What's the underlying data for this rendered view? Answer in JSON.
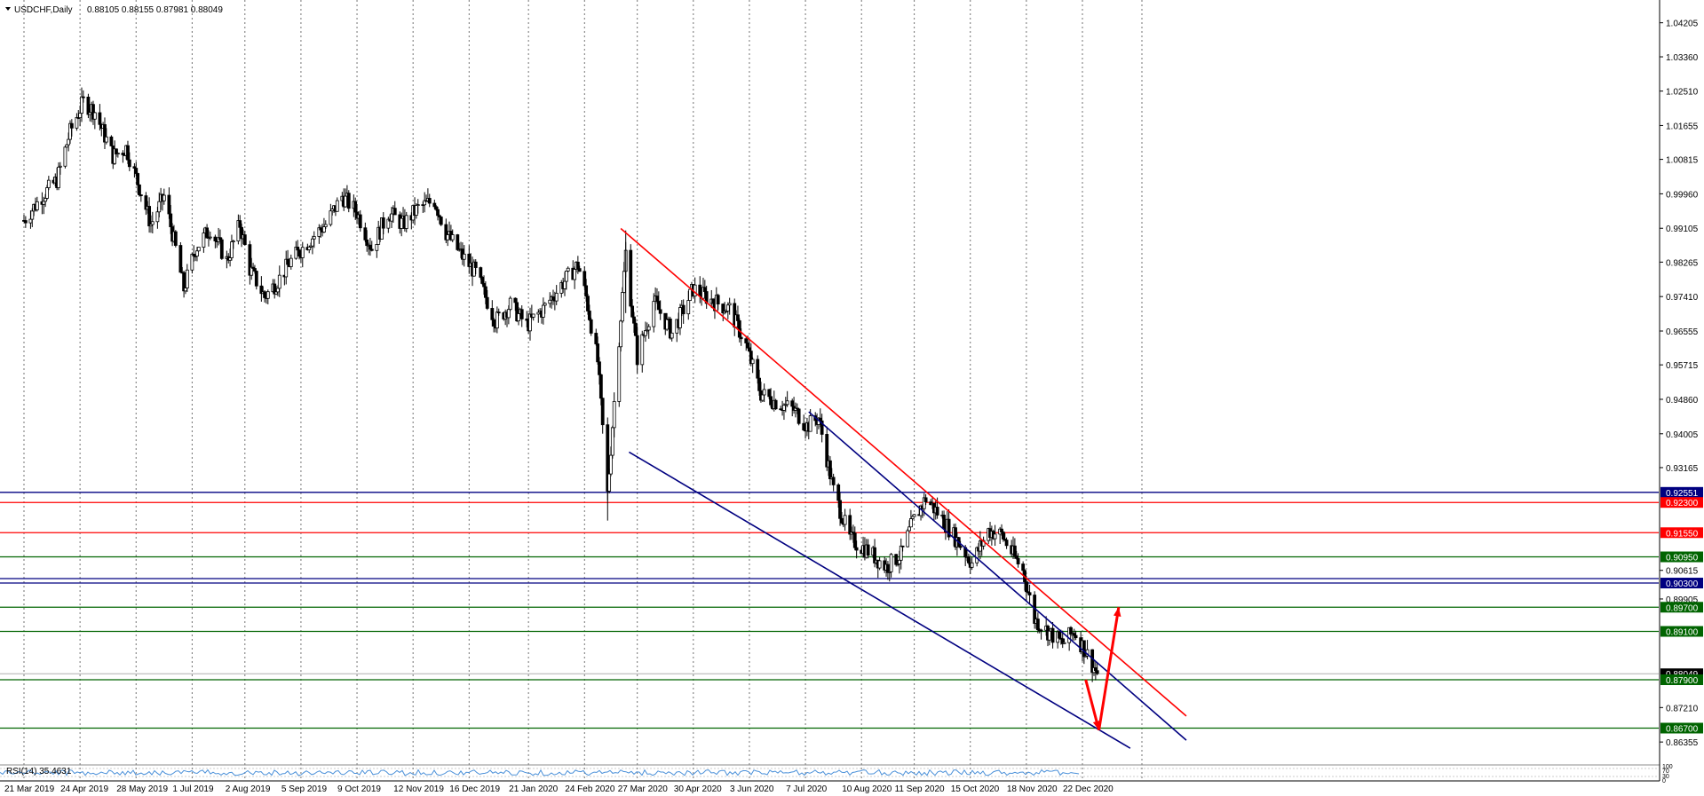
{
  "chart_data": {
    "type": "candlestick",
    "symbol_label": "USDCHF,Daily",
    "ohlc_text": "0.88105 0.88155 0.87981 0.88049",
    "ylim": [
      0.8605,
      1.0455
    ],
    "y_ticks": [
      "1.04205",
      "1.03360",
      "1.02510",
      "1.01655",
      "1.00815",
      "0.99960",
      "0.99105",
      "0.98265",
      "0.97410",
      "0.96555",
      "0.95715",
      "0.94860",
      "0.94005",
      "0.93165",
      "0.90615",
      "0.89905",
      "0.87210",
      "0.86355"
    ],
    "x_ticks": [
      {
        "label": "21 Mar 2019",
        "x": "2019-03-21"
      },
      {
        "label": "24 Apr 2019",
        "x": "2019-04-24"
      },
      {
        "label": "28 May 2019",
        "x": "2019-05-28"
      },
      {
        "label": "1 Jul 2019",
        "x": "2019-07-01"
      },
      {
        "label": "2 Aug 2019",
        "x": "2019-08-02"
      },
      {
        "label": "5 Sep 2019",
        "x": "2019-09-05"
      },
      {
        "label": "9 Oct 2019",
        "x": "2019-10-09"
      },
      {
        "label": "12 Nov 2019",
        "x": "2019-11-12"
      },
      {
        "label": "16 Dec 2019",
        "x": "2019-12-16"
      },
      {
        "label": "21 Jan 2020",
        "x": "2020-01-21"
      },
      {
        "label": "24 Feb 2020",
        "x": "2020-02-24"
      },
      {
        "label": "27 Mar 2020",
        "x": "2020-03-27"
      },
      {
        "label": "30 Apr 2020",
        "x": "2020-04-30"
      },
      {
        "label": "3 Jun 2020",
        "x": "2020-06-03"
      },
      {
        "label": "7 Jul 2020",
        "x": "2020-07-07"
      },
      {
        "label": "10 Aug 2020",
        "x": "2020-08-10"
      },
      {
        "label": "11 Sep 2020",
        "x": "2020-09-11"
      },
      {
        "label": "15 Oct 2020",
        "x": "2020-10-15"
      },
      {
        "label": "18 Nov 2020",
        "x": "2020-11-18"
      },
      {
        "label": "22 Dec 2020",
        "x": "2020-12-22"
      }
    ],
    "price_path": [
      {
        "x": "2019-03-21",
        "y": 0.993
      },
      {
        "x": "2019-04-01",
        "y": 0.999
      },
      {
        "x": "2019-04-10",
        "y": 1.003
      },
      {
        "x": "2019-04-18",
        "y": 1.015
      },
      {
        "x": "2019-04-26",
        "y": 1.0225
      },
      {
        "x": "2019-05-03",
        "y": 1.02
      },
      {
        "x": "2019-05-14",
        "y": 1.009
      },
      {
        "x": "2019-05-22",
        "y": 1.011
      },
      {
        "x": "2019-05-31",
        "y": 1.0
      },
      {
        "x": "2019-06-06",
        "y": 0.992
      },
      {
        "x": "2019-06-14",
        "y": 0.999
      },
      {
        "x": "2019-06-20",
        "y": 0.988
      },
      {
        "x": "2019-06-26",
        "y": 0.976
      },
      {
        "x": "2019-07-03",
        "y": 0.986
      },
      {
        "x": "2019-07-12",
        "y": 0.991
      },
      {
        "x": "2019-07-22",
        "y": 0.983
      },
      {
        "x": "2019-07-30",
        "y": 0.992
      },
      {
        "x": "2019-08-05",
        "y": 0.981
      },
      {
        "x": "2019-08-14",
        "y": 0.974
      },
      {
        "x": "2019-08-22",
        "y": 0.978
      },
      {
        "x": "2019-08-30",
        "y": 0.983
      },
      {
        "x": "2019-09-10",
        "y": 0.988
      },
      {
        "x": "2019-09-20",
        "y": 0.992
      },
      {
        "x": "2019-09-30",
        "y": 0.999
      },
      {
        "x": "2019-10-09",
        "y": 0.995
      },
      {
        "x": "2019-10-18",
        "y": 0.986
      },
      {
        "x": "2019-10-28",
        "y": 0.995
      },
      {
        "x": "2019-11-06",
        "y": 0.992
      },
      {
        "x": "2019-11-15",
        "y": 0.996
      },
      {
        "x": "2019-11-25",
        "y": 0.998
      },
      {
        "x": "2019-12-02",
        "y": 0.99
      },
      {
        "x": "2019-12-12",
        "y": 0.984
      },
      {
        "x": "2019-12-20",
        "y": 0.98
      },
      {
        "x": "2020-01-01",
        "y": 0.968
      },
      {
        "x": "2020-01-10",
        "y": 0.972
      },
      {
        "x": "2020-01-20",
        "y": 0.967
      },
      {
        "x": "2020-01-30",
        "y": 0.971
      },
      {
        "x": "2020-02-10",
        "y": 0.977
      },
      {
        "x": "2020-02-20",
        "y": 0.982
      },
      {
        "x": "2020-02-25",
        "y": 0.974
      },
      {
        "x": "2020-03-03",
        "y": 0.958
      },
      {
        "x": "2020-03-09",
        "y": 0.925
      },
      {
        "x": "2020-03-13",
        "y": 0.948
      },
      {
        "x": "2020-03-20",
        "y": 0.985
      },
      {
        "x": "2020-03-27",
        "y": 0.959
      },
      {
        "x": "2020-04-06",
        "y": 0.973
      },
      {
        "x": "2020-04-17",
        "y": 0.965
      },
      {
        "x": "2020-04-30",
        "y": 0.976
      },
      {
        "x": "2020-05-12",
        "y": 0.973
      },
      {
        "x": "2020-05-22",
        "y": 0.971
      },
      {
        "x": "2020-06-01",
        "y": 0.962
      },
      {
        "x": "2020-06-10",
        "y": 0.95
      },
      {
        "x": "2020-06-19",
        "y": 0.948
      },
      {
        "x": "2020-06-30",
        "y": 0.946
      },
      {
        "x": "2020-07-08",
        "y": 0.942
      },
      {
        "x": "2020-07-15",
        "y": 0.944
      },
      {
        "x": "2020-07-24",
        "y": 0.926
      },
      {
        "x": "2020-08-03",
        "y": 0.914
      },
      {
        "x": "2020-08-14",
        "y": 0.911
      },
      {
        "x": "2020-08-25",
        "y": 0.907
      },
      {
        "x": "2020-09-03",
        "y": 0.91
      },
      {
        "x": "2020-09-10",
        "y": 0.918
      },
      {
        "x": "2020-09-18",
        "y": 0.924
      },
      {
        "x": "2020-09-28",
        "y": 0.919
      },
      {
        "x": "2020-10-08",
        "y": 0.913
      },
      {
        "x": "2020-10-16",
        "y": 0.908
      },
      {
        "x": "2020-10-26",
        "y": 0.916
      },
      {
        "x": "2020-11-03",
        "y": 0.915
      },
      {
        "x": "2020-11-10",
        "y": 0.91
      },
      {
        "x": "2020-11-16",
        "y": 0.906
      },
      {
        "x": "2020-11-23",
        "y": 0.894
      },
      {
        "x": "2020-12-01",
        "y": 0.891
      },
      {
        "x": "2020-12-10",
        "y": 0.888
      },
      {
        "x": "2020-12-17",
        "y": 0.891
      },
      {
        "x": "2020-12-24",
        "y": 0.886
      },
      {
        "x": "2020-12-31",
        "y": 0.8805
      }
    ],
    "price_tags": [
      {
        "label": "0.92551",
        "y": 0.92551,
        "color": "#000080"
      },
      {
        "label": "0.92300",
        "y": 0.923,
        "color": "#ff0000"
      },
      {
        "label": "0.91550",
        "y": 0.9155,
        "color": "#ff0000"
      },
      {
        "label": "0.90950",
        "y": 0.9095,
        "color": "#006400"
      },
      {
        "label": "0.90300",
        "y": 0.903,
        "color": "#000080"
      },
      {
        "label": "0.89700",
        "y": 0.897,
        "color": "#006400"
      },
      {
        "label": "0.89100",
        "y": 0.891,
        "color": "#006400"
      },
      {
        "label": "0.88049",
        "y": 0.88049,
        "color": "#000000"
      },
      {
        "label": "0.87900",
        "y": 0.879,
        "color": "#006400"
      },
      {
        "label": "0.86700",
        "y": 0.867,
        "color": "#006400"
      }
    ],
    "h_lines": [
      {
        "y": 0.92551,
        "color": "#000080"
      },
      {
        "y": 0.923,
        "color": "#ff0000"
      },
      {
        "y": 0.9155,
        "color": "#ff0000"
      },
      {
        "y": 0.9095,
        "color": "#006400"
      },
      {
        "y": 0.9041,
        "color": "#000080"
      },
      {
        "y": 0.903,
        "color": "#000080"
      },
      {
        "y": 0.897,
        "color": "#006400"
      },
      {
        "y": 0.891,
        "color": "#006400"
      },
      {
        "y": 0.879,
        "color": "#006400"
      },
      {
        "y": 0.867,
        "color": "#006400"
      }
    ],
    "trendlines": [
      {
        "name": "red-resistance",
        "color": "#ff0000",
        "x1": "2020-03-17",
        "y1": 0.991,
        "x2": "2021-02-23",
        "y2": 0.87
      },
      {
        "name": "blue-upper-channel",
        "color": "#000080",
        "x1": "2020-07-09",
        "y1": 0.9455,
        "x2": "2021-02-23",
        "y2": 0.864
      },
      {
        "name": "blue-lower-channel",
        "color": "#000080",
        "x1": "2020-03-22",
        "y1": 0.9355,
        "x2": "2021-01-20",
        "y2": 0.862
      }
    ],
    "arrows": [
      {
        "color": "#ff0000",
        "points": [
          {
            "x": "2020-12-24",
            "y": 0.879
          },
          {
            "x": "2021-01-01",
            "y": 0.8665
          }
        ]
      },
      {
        "color": "#ff0000",
        "points": [
          {
            "x": "2021-01-01",
            "y": 0.8665
          },
          {
            "x": "2021-01-13",
            "y": 0.897
          }
        ]
      }
    ],
    "rsi": {
      "label": "RSI(14) 35.4631",
      "scale": [
        "100",
        "70",
        "30",
        "0"
      ]
    }
  }
}
